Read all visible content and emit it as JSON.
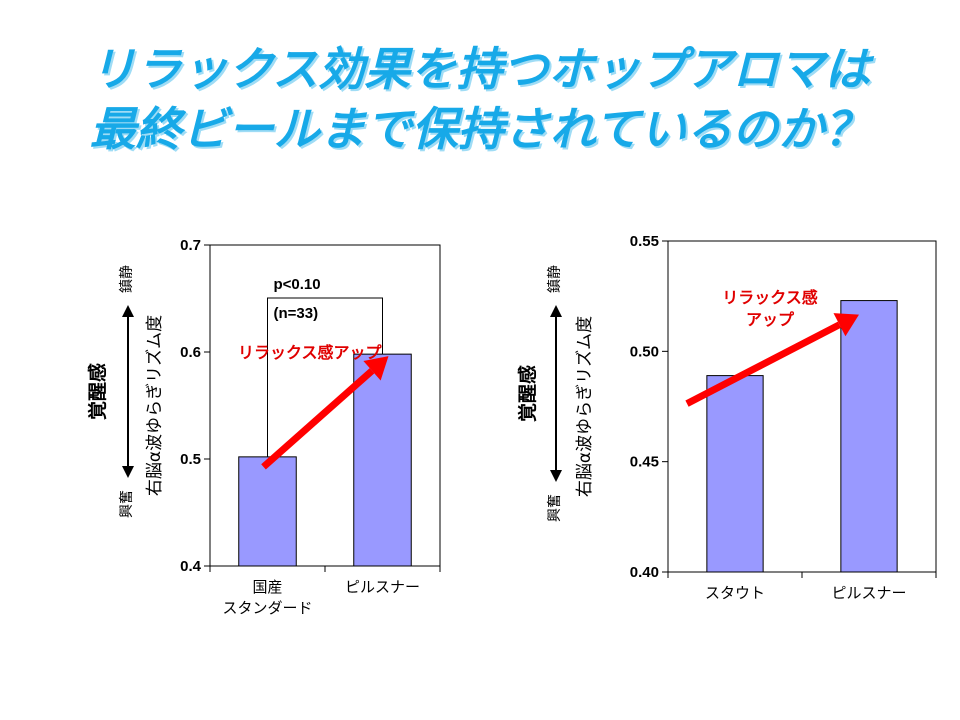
{
  "title": {
    "line1": "リラックス効果を持つホップアロマは",
    "line2": "最終ビールまで保持されているのか？"
  },
  "colors": {
    "title": "#17a9e8",
    "bar": "#9999ff",
    "arrow": "#ff0000",
    "annotation": "#e00000"
  },
  "chart_data": [
    {
      "type": "bar",
      "categories": [
        "国産\nスタンダード",
        "ピルスナー"
      ],
      "values": [
        0.502,
        0.598
      ],
      "ylabel": "右脳α波ゆらぎリズム度",
      "ylim": [
        0.4,
        0.7
      ],
      "yticks": [
        "0.4",
        "0.5",
        "0.6",
        "0.7"
      ],
      "side_top": "鎮静",
      "side_bottom": "興奮",
      "side_label": "覚醒感",
      "annotation": "リラックス感アップ",
      "significance": {
        "p": "p<0.10",
        "n": "(n=33)"
      },
      "grid": false,
      "legend": "none"
    },
    {
      "type": "bar",
      "categories": [
        "スタウト",
        "ピルスナー"
      ],
      "values": [
        0.489,
        0.523
      ],
      "ylabel": "右脳α波ゆらぎリズム度",
      "ylim": [
        0.4,
        0.55
      ],
      "yticks": [
        "0.40",
        "0.45",
        "0.50",
        "0.55"
      ],
      "side_top": "鎮静",
      "side_bottom": "興奮",
      "side_label": "覚醒感",
      "annotation": "リラックス感\nアップ",
      "grid": false,
      "legend": "none"
    }
  ]
}
